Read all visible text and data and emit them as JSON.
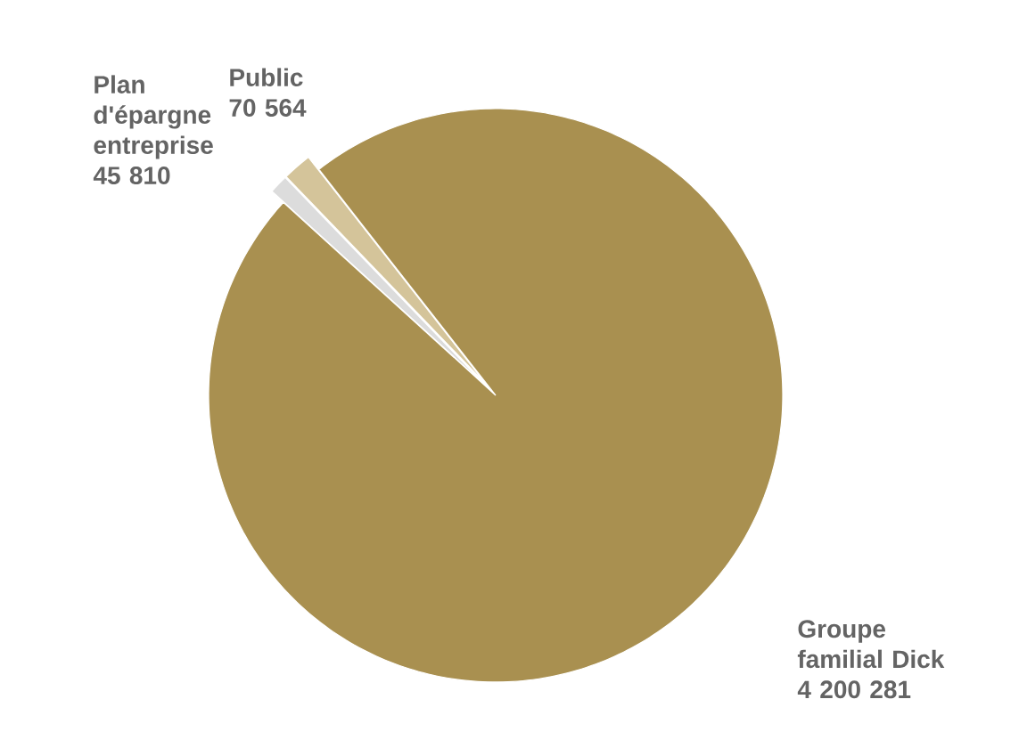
{
  "chart_data": {
    "type": "pie",
    "categories": [
      "Public",
      "Plan d'épargne entreprise",
      "Groupe familial Dick"
    ],
    "values": [
      70564,
      45810,
      4200281
    ],
    "colors": [
      "#d4c49a",
      "#dcdcdc",
      "#a99050"
    ],
    "value_labels": [
      "70 564",
      "45 810",
      "4 200 281"
    ]
  }
}
